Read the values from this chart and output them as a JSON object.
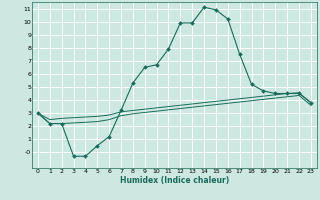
{
  "xlabel": "Humidex (Indice chaleur)",
  "bg_color": "#cce8e0",
  "grid_color": "#ffffff",
  "line_color": "#1a6b5a",
  "xlim": [
    -0.5,
    23.5
  ],
  "ylim": [
    -1.2,
    11.5
  ],
  "xticks": [
    0,
    1,
    2,
    3,
    4,
    5,
    6,
    7,
    8,
    9,
    10,
    11,
    12,
    13,
    14,
    15,
    16,
    17,
    18,
    19,
    20,
    21,
    22,
    23
  ],
  "yticks": [
    0,
    1,
    2,
    3,
    4,
    5,
    6,
    7,
    8,
    9,
    10,
    11
  ],
  "ytick_labels": [
    "-0",
    "1",
    "2",
    "3",
    "4",
    "5",
    "6",
    "7",
    "8",
    "9",
    "10",
    "11"
  ],
  "line1_x": [
    0,
    1,
    2,
    3,
    4,
    5,
    6,
    7,
    8,
    9,
    10,
    11,
    12,
    13,
    14,
    15,
    16,
    17,
    18,
    19,
    20,
    21,
    22,
    23
  ],
  "line1_y": [
    3.0,
    2.2,
    2.2,
    -0.3,
    -0.3,
    0.5,
    1.2,
    3.2,
    5.3,
    6.5,
    6.7,
    7.9,
    9.9,
    9.9,
    11.1,
    10.9,
    10.2,
    7.5,
    5.2,
    4.7,
    4.5,
    4.5,
    4.5,
    3.8
  ],
  "line2_x": [
    0,
    1,
    2,
    3,
    4,
    5,
    6,
    7,
    8,
    9,
    10,
    11,
    12,
    13,
    14,
    15,
    16,
    17,
    18,
    19,
    20,
    21,
    22,
    23
  ],
  "line2_y": [
    3.0,
    2.5,
    2.6,
    2.65,
    2.7,
    2.75,
    2.85,
    3.1,
    3.2,
    3.3,
    3.4,
    3.5,
    3.6,
    3.7,
    3.8,
    3.9,
    4.0,
    4.1,
    4.2,
    4.3,
    4.4,
    4.5,
    4.55,
    3.8
  ],
  "line3_x": [
    0,
    1,
    2,
    3,
    4,
    5,
    6,
    7,
    8,
    9,
    10,
    11,
    12,
    13,
    14,
    15,
    16,
    17,
    18,
    19,
    20,
    21,
    22,
    23
  ],
  "line3_y": [
    3.0,
    2.2,
    2.2,
    2.25,
    2.3,
    2.35,
    2.5,
    2.8,
    2.95,
    3.05,
    3.15,
    3.25,
    3.35,
    3.45,
    3.55,
    3.65,
    3.75,
    3.85,
    3.95,
    4.05,
    4.15,
    4.25,
    4.35,
    3.6
  ]
}
